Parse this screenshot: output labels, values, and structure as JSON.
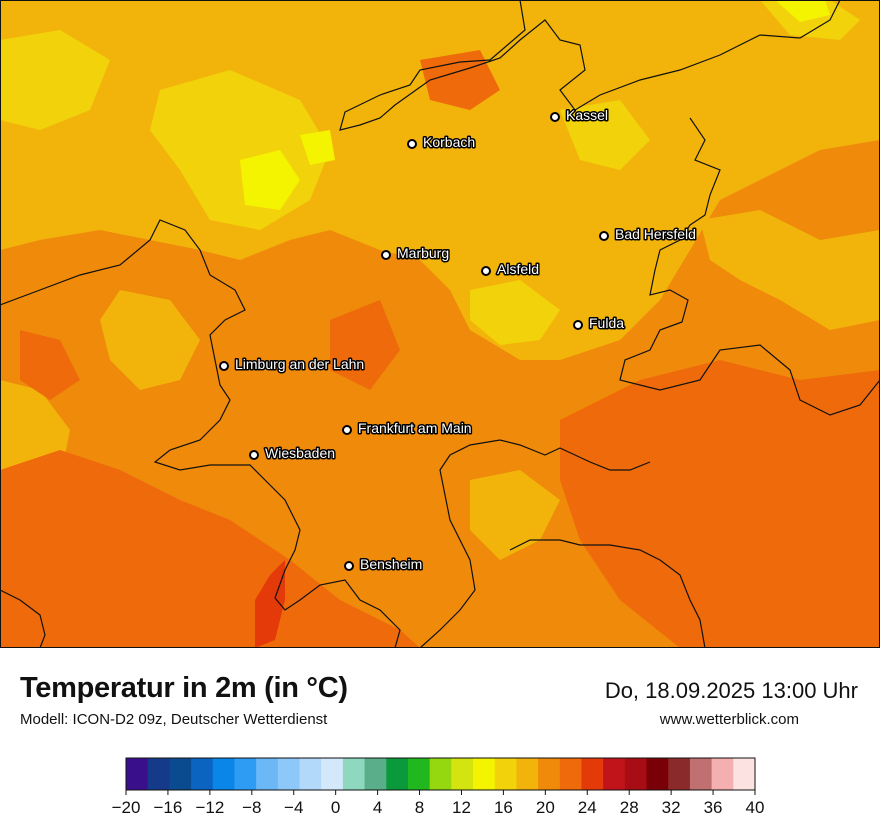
{
  "header": {
    "title": "Temperatur in 2m (in °C)",
    "model": "Modell: ICON-D2 09z, Deutscher Wetterdienst",
    "datetime": "Do, 18.09.2025 13:00 Uhr",
    "website": "www.wetterblick.com"
  },
  "cities": [
    {
      "name": "Kassel"
    },
    {
      "name": "Korbach"
    },
    {
      "name": "Bad Hersfeld"
    },
    {
      "name": "Marburg"
    },
    {
      "name": "Alsfeld"
    },
    {
      "name": "Fulda"
    },
    {
      "name": "Limburg an der Lahn"
    },
    {
      "name": "Frankfurt am Main"
    },
    {
      "name": "Wiesbaden"
    },
    {
      "name": "Bensheim"
    }
  ],
  "legend": {
    "ticks": [
      "−20",
      "−16",
      "−12",
      "−8",
      "−4",
      "0",
      "4",
      "8",
      "12",
      "16",
      "20",
      "24",
      "28",
      "32",
      "36",
      "40"
    ],
    "colors": [
      "#3a0f8c",
      "#163a8a",
      "#0a4a8e",
      "#0a64c0",
      "#0a86e8",
      "#2e9cf2",
      "#6cb8f6",
      "#8ec8f8",
      "#b2d8fa",
      "#d4e8fc",
      "#8ed8c0",
      "#5aae8a",
      "#0a9a3c",
      "#20b81e",
      "#96d810",
      "#d4e410",
      "#f4f400",
      "#f2d20a",
      "#f2b40a",
      "#f08a0a",
      "#ee6a0a",
      "#e43a0a",
      "#c0141a",
      "#a80c14",
      "#7a0008",
      "#8a2a2a",
      "#c07070",
      "#f4b0b0",
      "#fde2e2"
    ]
  },
  "colors": {
    "base": "#f08a0a",
    "warm": "#ee6a0a",
    "hot": "#e43a0a",
    "cool": "#f2b40a",
    "cooler": "#f2d20a",
    "coolest": "#f4f400"
  }
}
